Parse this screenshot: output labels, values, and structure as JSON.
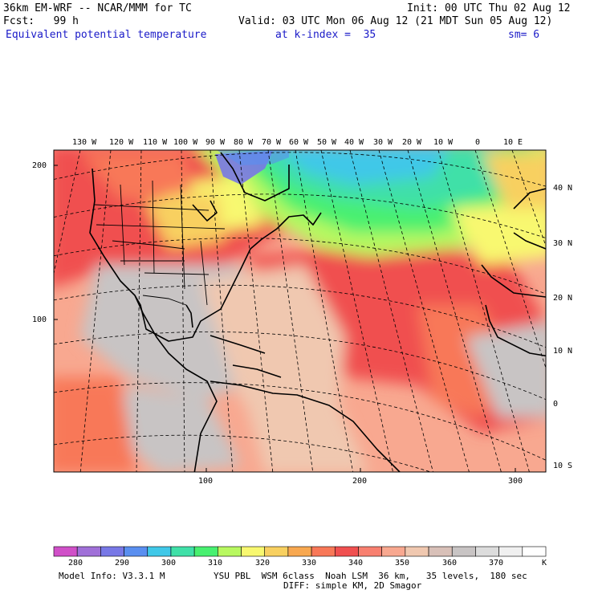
{
  "header": {
    "model": "36km EM-WRF -- NCAR/MMM for TC",
    "init": "Init: 00 UTC Thu 02 Aug 12",
    "forecast": "Fcst:   99 h",
    "valid": "Valid: 03 UTC Mon 06 Aug 12 (21 MDT Sun 05 Aug 12)",
    "field": "Equivalent potential temperature",
    "level": "at k-index =  35",
    "smoothing": "sm= 6"
  },
  "map": {
    "lon_labels": [
      "130 W",
      "120 W",
      "110 W",
      "100 W",
      "90 W",
      "80 W",
      "70 W",
      "60 W",
      "50 W",
      "40 W",
      "30 W",
      "20 W",
      "10 W",
      "0",
      "10 E"
    ],
    "lat_labels": [
      "40 N",
      "30 N",
      "20 N",
      "10 N",
      "0",
      "10 S"
    ],
    "grid_y_labels": [
      "200",
      "100"
    ],
    "grid_x_labels": [
      "100",
      "200",
      "300"
    ]
  },
  "legend": {
    "labels": [
      "280",
      "290",
      "300",
      "310",
      "320",
      "330",
      "340",
      "350",
      "360",
      "370"
    ],
    "unit": "K",
    "colors": [
      "#d050c8",
      "#a070d8",
      "#7878e6",
      "#5a8ff0",
      "#40c8e8",
      "#40e0a8",
      "#48f070",
      "#b8f860",
      "#f8f870",
      "#f8d060",
      "#f8a850",
      "#f87858",
      "#f05050",
      "#f88070",
      "#f8a890",
      "#f0c8b0",
      "#d8c0b8",
      "#c8c4c4",
      "#dcdcdc",
      "#f0f0f0",
      "#ffffff"
    ]
  },
  "colors": {
    "title": "#1a1ac8",
    "land_border": "#000000",
    "grid_lines": "#000000"
  },
  "footer": {
    "model_info": "Model Info: V3.3.1 M",
    "physics": "YSU PBL  WSM 6class  Noah LSM  36 km,   35 levels,  180 sec",
    "diffusion": "DIFF: simple KM, 2D Smagor"
  }
}
